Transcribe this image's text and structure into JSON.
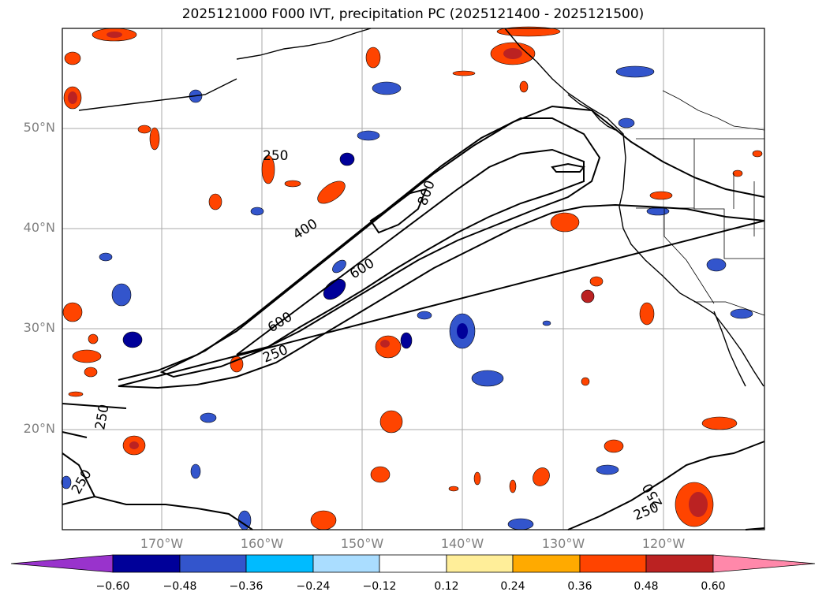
{
  "title": "2025121000 F000 IVT, precipitation PC (2025121400 - 2025121500)",
  "lat_labels": [
    "50°N",
    "40°N",
    "30°N",
    "20°N"
  ],
  "lon_labels": [
    "170°W",
    "160°W",
    "150°W",
    "140°W",
    "130°W",
    "120°W"
  ],
  "contour_labels": [
    "250",
    "400",
    "800",
    "600",
    "600",
    "250",
    "250",
    "250",
    "250",
    "250"
  ],
  "colorbar": {
    "ticks": [
      "−0.60",
      "−0.48",
      "−0.36",
      "−0.24",
      "−0.12",
      "0.12",
      "0.24",
      "0.36",
      "0.48",
      "0.60"
    ],
    "colors": [
      "#9933cc",
      "#000099",
      "#3355cc",
      "#00bbff",
      "#aaddff",
      "#ffffff",
      "#ffee99",
      "#ffaa00",
      "#ff4400",
      "#bb2222",
      "#ff88aa"
    ]
  },
  "colors": {
    "grid": "#aaaaaa",
    "axis_text": "#808080"
  }
}
